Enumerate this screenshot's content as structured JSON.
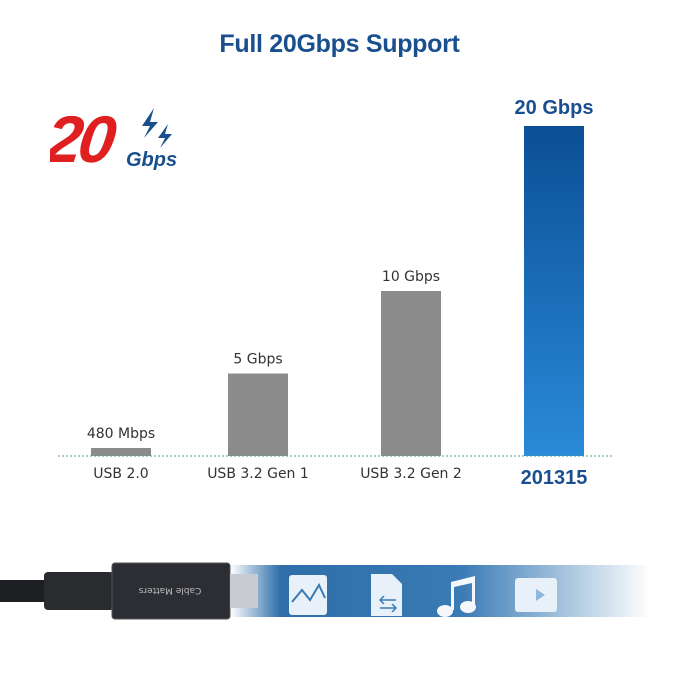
{
  "title": "Full 20Gbps Support",
  "badge": {
    "number": "20",
    "unit": "Gbps",
    "icon": "lightning-icon",
    "number_color": "#e02020",
    "unit_color": "#1a4f8f"
  },
  "chart_data": {
    "type": "bar",
    "categories": [
      "USB 2.0",
      "USB 3.2 Gen 1",
      "USB 3.2 Gen 2",
      "201315"
    ],
    "values": [
      0.48,
      5,
      10,
      20
    ],
    "unit": "Gbps",
    "data_labels": [
      "480 Mbps",
      "5 Gbps",
      "10 Gbps",
      "20 Gbps"
    ],
    "ylim": [
      0,
      20
    ],
    "grid": false,
    "colors": {
      "default": "#8c8c8c",
      "highlight_top": "#0b4f96",
      "highlight_bottom": "#2a8ad8",
      "baseline": "#4a9a8a"
    },
    "highlight_index": 3
  },
  "cable": {
    "brand": "Cable Matters",
    "icons": [
      "image-icon",
      "file-transfer-icon",
      "music-note-icon",
      "video-icon"
    ]
  }
}
